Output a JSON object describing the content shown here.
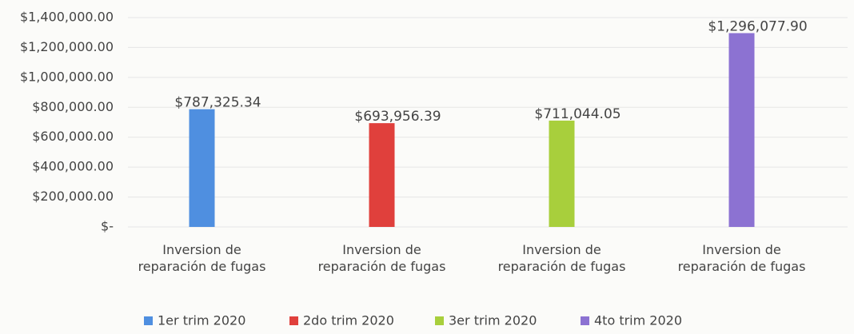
{
  "chart_data": {
    "type": "bar",
    "categories": [
      "Inversion de reparación de fugas",
      "Inversion de reparación de fugas",
      "Inversion de reparación de fugas",
      "Inversion de reparación de fugas"
    ],
    "series": [
      {
        "name": "1er trim 2020",
        "color": "#4f8fe0",
        "values": [
          787325.34,
          null,
          null,
          null
        ],
        "value_labels": [
          "$787,325.34",
          null,
          null,
          null
        ]
      },
      {
        "name": "2do trim 2020",
        "color": "#e0403c",
        "values": [
          null,
          693956.39,
          null,
          null
        ],
        "value_labels": [
          null,
          "$693,956.39",
          null,
          null
        ]
      },
      {
        "name": "3er trim 2020",
        "color": "#a8cf3c",
        "values": [
          null,
          null,
          711044.05,
          null
        ],
        "value_labels": [
          null,
          null,
          "$711,044.05",
          null
        ]
      },
      {
        "name": "4to trim 2020",
        "color": "#8c72d2",
        "values": [
          null,
          null,
          null,
          1296077.9
        ],
        "value_labels": [
          null,
          null,
          null,
          "$1,296,077.90"
        ]
      }
    ],
    "ylim": [
      0,
      1400000
    ],
    "yticks": [
      {
        "value": 0,
        "label": "$-"
      },
      {
        "value": 200000,
        "label": "$200,000.00"
      },
      {
        "value": 400000,
        "label": "$400,000.00"
      },
      {
        "value": 600000,
        "label": "$600,000.00"
      },
      {
        "value": 800000,
        "label": "$800,000.00"
      },
      {
        "value": 1000000,
        "label": "$1,000,000.00"
      },
      {
        "value": 1200000,
        "label": "$1,200,000.00"
      },
      {
        "value": 1400000,
        "label": "$1,400,000.00"
      }
    ],
    "grid": true
  }
}
